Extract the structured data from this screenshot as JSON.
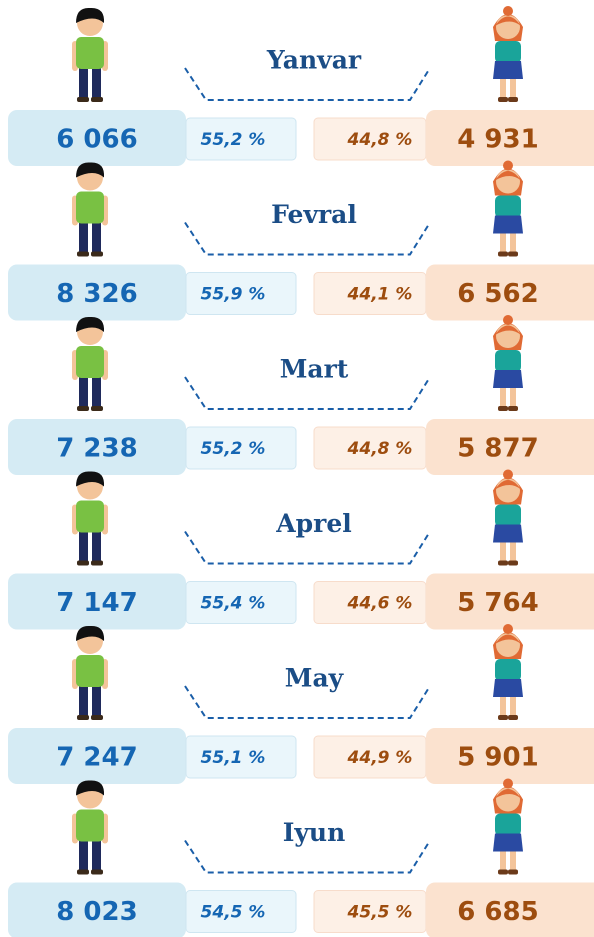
{
  "months": [
    {
      "name": "Yanvar",
      "male_count": "6 066",
      "male_share": "55,2 %",
      "female_share": "44,8 %",
      "female_count": "4 931"
    },
    {
      "name": "Fevral",
      "male_count": "8 326",
      "male_share": "55,9 %",
      "female_share": "44,1 %",
      "female_count": "6 562"
    },
    {
      "name": "Mart",
      "male_count": "7 238",
      "male_share": "55,2 %",
      "female_share": "44,8 %",
      "female_count": "5 877"
    },
    {
      "name": "Aprel",
      "male_count": "7 147",
      "male_share": "55,4 %",
      "female_share": "44,6 %",
      "female_count": "5 764"
    },
    {
      "name": "May",
      "male_count": "7 247",
      "male_share": "55,1 %",
      "female_share": "44,9 %",
      "female_count": "5 901"
    },
    {
      "name": "Iyun",
      "male_count": "8 023",
      "male_share": "54,5 %",
      "female_share": "45,5 %",
      "female_count": "6 685"
    }
  ]
}
